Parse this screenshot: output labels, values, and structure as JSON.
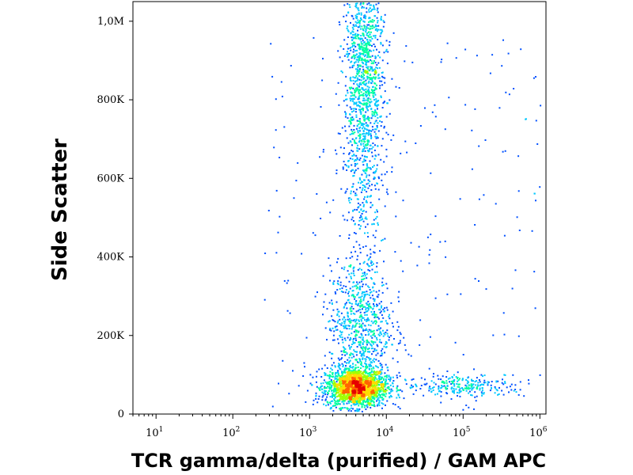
{
  "chart_data": {
    "type": "scatter",
    "subtype": "flow-cytometry-density-dot-plot",
    "xlabel": "TCR gamma/delta (purified) / GAM APC",
    "ylabel": "Side Scatter",
    "x_scale": "log",
    "xlim": [
      5,
      1200000
    ],
    "ylim": [
      0,
      1050000
    ],
    "x_ticks": [
      {
        "value": 10,
        "base": "10",
        "exp": "1"
      },
      {
        "value": 100,
        "base": "10",
        "exp": "2"
      },
      {
        "value": 1000,
        "base": "10",
        "exp": "3"
      },
      {
        "value": 10000,
        "base": "10",
        "exp": "4"
      },
      {
        "value": 100000,
        "base": "10",
        "exp": "5"
      },
      {
        "value": 1000000,
        "base": "10",
        "exp": "6"
      }
    ],
    "y_ticks": [
      {
        "value": 0,
        "label": "0"
      },
      {
        "value": 200000,
        "label": "200K"
      },
      {
        "value": 400000,
        "label": "400K"
      },
      {
        "value": 600000,
        "label": "600K"
      },
      {
        "value": 800000,
        "label": "800K"
      },
      {
        "value": 1000000,
        "label": "1,0M"
      }
    ],
    "colormap": [
      "#0000c8",
      "#0050ff",
      "#00c8ff",
      "#00ffa0",
      "#a0ff00",
      "#ffdc00",
      "#ff6400",
      "#e60000"
    ],
    "populations": [
      {
        "x_center": 4000,
        "x_spread_decades": 0.2,
        "y_center": 70000,
        "y_spread": 25000,
        "weight": 0.38
      },
      {
        "x_center": 4500,
        "x_spread_decades": 0.2,
        "y_center": 230000,
        "y_spread": 80000,
        "weight": 0.14
      },
      {
        "x_center": 5000,
        "x_spread_decades": 0.13,
        "y_center": 850000,
        "y_spread": 200000,
        "weight": 0.3
      },
      {
        "x_center": 100000,
        "x_spread_decades": 0.4,
        "y_center": 75000,
        "y_spread": 15000,
        "weight": 0.05
      }
    ],
    "grid": false,
    "legend": "none"
  }
}
